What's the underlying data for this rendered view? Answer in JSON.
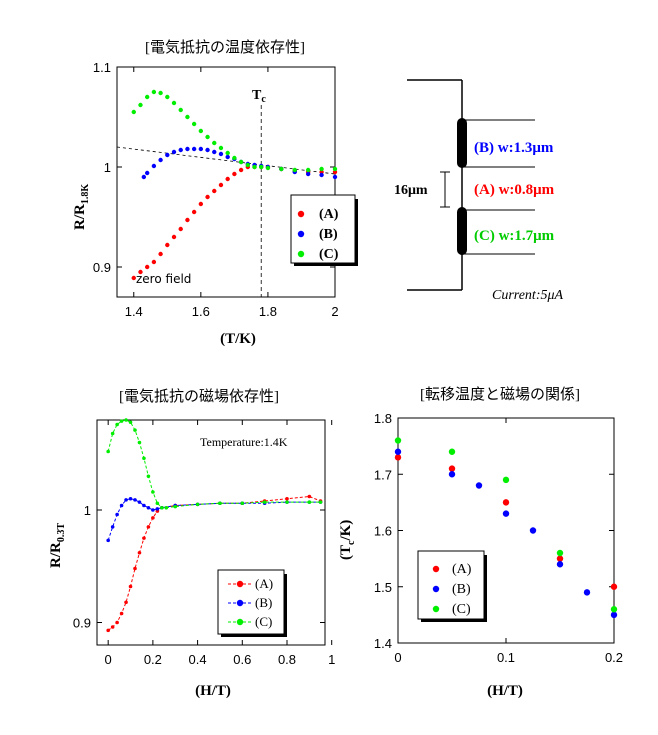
{
  "chart_data": [
    {
      "type": "scatter",
      "title": "[電気抵抗の温度依存性]",
      "xlabel": "(T/K)",
      "ylabel": "R/R",
      "ylabel_sub": "1.8K",
      "xlim": [
        1.35,
        2.0
      ],
      "ylim": [
        0.87,
        1.1
      ],
      "xticks": [
        "1.4",
        "1.6",
        "1.8",
        "2"
      ],
      "yticks": [
        "0.9",
        "1",
        "1.1"
      ],
      "annotations": {
        "tc_label": "T",
        "tc_sub": "c",
        "tc_x": 1.78,
        "note": "zero field"
      },
      "legend": {
        "placement": "right-middle",
        "labels": [
          "(A)",
          "(B)",
          "(C)"
        ]
      },
      "series": [
        {
          "name": "(A)",
          "color": "#ff0000",
          "x": [
            1.4,
            1.42,
            1.44,
            1.46,
            1.48,
            1.5,
            1.52,
            1.54,
            1.56,
            1.58,
            1.6,
            1.62,
            1.64,
            1.66,
            1.68,
            1.7,
            1.72,
            1.74,
            1.76,
            1.78,
            1.8,
            1.84,
            1.88,
            1.92,
            1.96,
            2.0
          ],
          "y": [
            0.889,
            0.895,
            0.9,
            0.905,
            0.913,
            0.922,
            0.93,
            0.938,
            0.947,
            0.955,
            0.963,
            0.97,
            0.976,
            0.982,
            0.988,
            0.993,
            0.997,
            1.0,
            1.0,
            1.0,
            1.0,
            0.998,
            0.996,
            0.995,
            0.995,
            0.995
          ]
        },
        {
          "name": "(B)",
          "color": "#0000ff",
          "x": [
            1.43,
            1.44,
            1.46,
            1.48,
            1.5,
            1.52,
            1.54,
            1.56,
            1.58,
            1.6,
            1.62,
            1.64,
            1.66,
            1.68,
            1.7,
            1.72,
            1.74,
            1.76,
            1.78,
            1.8,
            1.84,
            1.88,
            1.92,
            1.96,
            2.0
          ],
          "y": [
            0.99,
            0.994,
            1.001,
            1.007,
            1.012,
            1.015,
            1.017,
            1.018,
            1.018,
            1.018,
            1.017,
            1.015,
            1.013,
            1.01,
            1.008,
            1.005,
            1.003,
            1.002,
            1.001,
            1.0,
            0.998,
            0.995,
            0.993,
            0.992,
            0.99
          ]
        },
        {
          "name": "(C)",
          "color": "#00ee00",
          "x": [
            1.4,
            1.42,
            1.44,
            1.46,
            1.48,
            1.5,
            1.52,
            1.54,
            1.56,
            1.58,
            1.6,
            1.62,
            1.64,
            1.66,
            1.68,
            1.7,
            1.72,
            1.74,
            1.76,
            1.78,
            1.8,
            1.84,
            1.88,
            1.92,
            1.96,
            2.0
          ],
          "y": [
            1.055,
            1.062,
            1.07,
            1.075,
            1.074,
            1.07,
            1.064,
            1.057,
            1.05,
            1.043,
            1.036,
            1.03,
            1.024,
            1.019,
            1.014,
            1.009,
            1.005,
            1.002,
            1.0,
            1.0,
            0.999,
            0.998,
            0.997,
            0.997,
            0.998,
            0.998
          ]
        }
      ],
      "dashed_reference": {
        "x": [
          1.35,
          2.0
        ],
        "y": [
          1.02,
          0.993
        ]
      }
    },
    {
      "type": "line",
      "title": "[電気抵抗の磁場依存性]",
      "xlabel": "(H/T)",
      "ylabel": "R/R",
      "ylabel_sub": "0.3T",
      "xlim": [
        -0.05,
        0.97
      ],
      "ylim": [
        0.88,
        1.08
      ],
      "xticks": [
        "0",
        "0.2",
        "0.4",
        "0.6",
        "0.8",
        "1"
      ],
      "yticks": [
        "0.9",
        "1"
      ],
      "annotations": {
        "note": "Temperature:1.4K"
      },
      "legend": {
        "placement": "bottom-right",
        "labels": [
          "(A)",
          "(B)",
          "(C)"
        ]
      },
      "series": [
        {
          "name": "(A)",
          "color": "#ff0000",
          "x": [
            0.0,
            0.02,
            0.04,
            0.06,
            0.08,
            0.1,
            0.12,
            0.14,
            0.16,
            0.18,
            0.2,
            0.22,
            0.24,
            0.3,
            0.4,
            0.5,
            0.6,
            0.7,
            0.8,
            0.9,
            0.95
          ],
          "y": [
            0.893,
            0.896,
            0.9,
            0.908,
            0.918,
            0.932,
            0.948,
            0.962,
            0.975,
            0.985,
            0.993,
            0.999,
            1.002,
            1.004,
            1.005,
            1.006,
            1.006,
            1.008,
            1.01,
            1.012,
            1.008
          ]
        },
        {
          "name": "(B)",
          "color": "#0000ff",
          "x": [
            0.0,
            0.02,
            0.04,
            0.06,
            0.08,
            0.1,
            0.12,
            0.14,
            0.16,
            0.18,
            0.2,
            0.22,
            0.24,
            0.3,
            0.4,
            0.5,
            0.6,
            0.7,
            0.8,
            0.9,
            0.95
          ],
          "y": [
            0.973,
            0.985,
            0.996,
            1.004,
            1.009,
            1.01,
            1.009,
            1.007,
            1.004,
            1.002,
            1.0,
            1.001,
            1.002,
            1.004,
            1.005,
            1.006,
            1.006,
            1.006,
            1.007,
            1.007,
            1.007
          ]
        },
        {
          "name": "(C)",
          "color": "#00ee00",
          "x": [
            0.0,
            0.02,
            0.04,
            0.06,
            0.08,
            0.1,
            0.12,
            0.14,
            0.16,
            0.18,
            0.2,
            0.22,
            0.24,
            0.26,
            0.3,
            0.4,
            0.5,
            0.6,
            0.7,
            0.8,
            0.9,
            0.95
          ],
          "y": [
            1.052,
            1.068,
            1.076,
            1.079,
            1.08,
            1.078,
            1.071,
            1.06,
            1.046,
            1.03,
            1.016,
            1.006,
            1.002,
            1.002,
            1.003,
            1.005,
            1.006,
            1.006,
            1.007,
            1.007,
            1.007,
            1.007
          ]
        }
      ]
    },
    {
      "type": "scatter",
      "title": "[転移温度と磁場の関係]",
      "xlabel": "(H/T)",
      "ylabel": "(T",
      "ylabel_sub": "c",
      "ylabel_end": "/K)",
      "xlim": [
        0,
        0.2
      ],
      "ylim": [
        1.4,
        1.8
      ],
      "xticks": [
        "0",
        "0.1",
        "0.2"
      ],
      "yticks": [
        "1.4",
        "1.5",
        "1.6",
        "1.7",
        "1.8"
      ],
      "legend": {
        "placement": "bottom-left",
        "labels": [
          "(A)",
          "(B)",
          "(C)"
        ]
      },
      "series": [
        {
          "name": "(A)",
          "color": "#ff0000",
          "x": [
            0,
            0.05,
            0.1,
            0.15,
            0.2
          ],
          "y": [
            1.73,
            1.71,
            1.65,
            1.55,
            1.5
          ]
        },
        {
          "name": "(B)",
          "color": "#0000ff",
          "x": [
            0,
            0.05,
            0.075,
            0.1,
            0.125,
            0.15,
            0.175,
            0.2
          ],
          "y": [
            1.74,
            1.7,
            1.68,
            1.63,
            1.6,
            1.54,
            1.49,
            1.45
          ]
        },
        {
          "name": "(C)",
          "color": "#00ee00",
          "x": [
            0,
            0.05,
            0.1,
            0.15,
            0.2
          ],
          "y": [
            1.76,
            1.74,
            1.69,
            1.56,
            1.46
          ]
        }
      ]
    }
  ],
  "schematic": {
    "label_b": "(B) w:1.3",
    "label_a": "(A) w:0.8",
    "label_c": "(C) w:1.7",
    "unit": "μm",
    "gap": "16μm",
    "current": "Current:5μA",
    "colors": {
      "a": "#ff0000",
      "b": "#0000ff",
      "c": "#00cc00"
    }
  }
}
